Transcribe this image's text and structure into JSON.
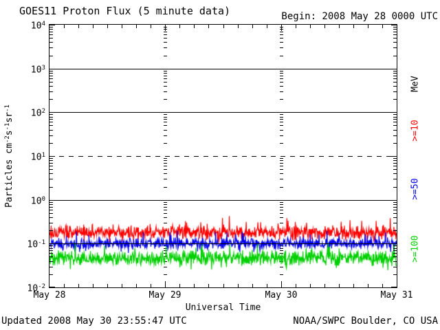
{
  "page": {
    "background": "#FFFFFF",
    "text_color": "#000000"
  },
  "header": {
    "title": "GOES11 Proton Flux (5 minute data)",
    "begin_label": "Begin: 2008 May 28 0000 UTC"
  },
  "footer": {
    "updated_label": "Updated 2008 May 30 23:55:47 UTC",
    "source_label": "NOAA/SWPC Boulder, CO USA"
  },
  "chart_data": {
    "type": "line",
    "title": "GOES11 Proton Flux (5 minute data)",
    "xlabel": "Universal Time",
    "ylabel": "Particles cm⁻²s⁻¹sr⁻¹",
    "ylabel_parts": [
      {
        "text": "Particles cm"
      },
      {
        "sup": "-2"
      },
      {
        "text": "s"
      },
      {
        "sup": "-1"
      },
      {
        "text": "sr"
      },
      {
        "sup": "-1"
      }
    ],
    "y_scale": "log",
    "ylim": [
      0.01,
      10000
    ],
    "y_tick_labels": [
      {
        "base": "10",
        "exp": "4"
      },
      {
        "base": "10",
        "exp": "3"
      },
      {
        "base": "10",
        "exp": "2"
      },
      {
        "base": "10",
        "exp": "1"
      },
      {
        "base": "10",
        "exp": "0"
      },
      {
        "base": "10",
        "exp": "-1"
      },
      {
        "base": "10",
        "exp": "-2"
      }
    ],
    "x_start": "2008 May 28 0000 UTC",
    "x_end": "2008 May 31 0000 UTC",
    "x_tick_labels": [
      "May 28",
      "May 29",
      "May 30",
      "May 31"
    ],
    "x_minor_tick_hours": 3,
    "right_axis_labels": [
      {
        "label": "MeV",
        "color": "#000000"
      },
      {
        "label": ">=10",
        "color": "#FF0000"
      },
      {
        "label": ">=50",
        "color": "#0000EE"
      },
      {
        "label": ">=100",
        "color": "#00D000"
      }
    ],
    "grid": {
      "solid_lines_at": [
        1000,
        100,
        1,
        0.1
      ],
      "dashed_lines_at": [
        10
      ],
      "day_boundary_dash_columns": [
        "May 29",
        "May 30"
      ]
    },
    "cadence_minutes": 5,
    "samples_per_series": 864,
    "series": [
      {
        "name": ">=10 MeV",
        "color": "#FF0000",
        "median_flux": 0.18,
        "min_flux": 0.095,
        "max_flux": 0.5,
        "log10_noise_amp": 0.17,
        "spike_prob": 0.05,
        "seed": 20080528
      },
      {
        "name": ">=50 MeV",
        "color": "#0000EE",
        "median_flux": 0.1,
        "min_flux": 0.055,
        "max_flux": 0.22,
        "log10_noise_amp": 0.14,
        "spike_prob": 0.05,
        "seed": 20080529
      },
      {
        "name": ">=100 MeV",
        "color": "#00D000",
        "median_flux": 0.047,
        "min_flux": 0.023,
        "max_flux": 0.12,
        "log10_noise_amp": 0.19,
        "spike_prob": 0.05,
        "seed": 20080530
      }
    ]
  }
}
